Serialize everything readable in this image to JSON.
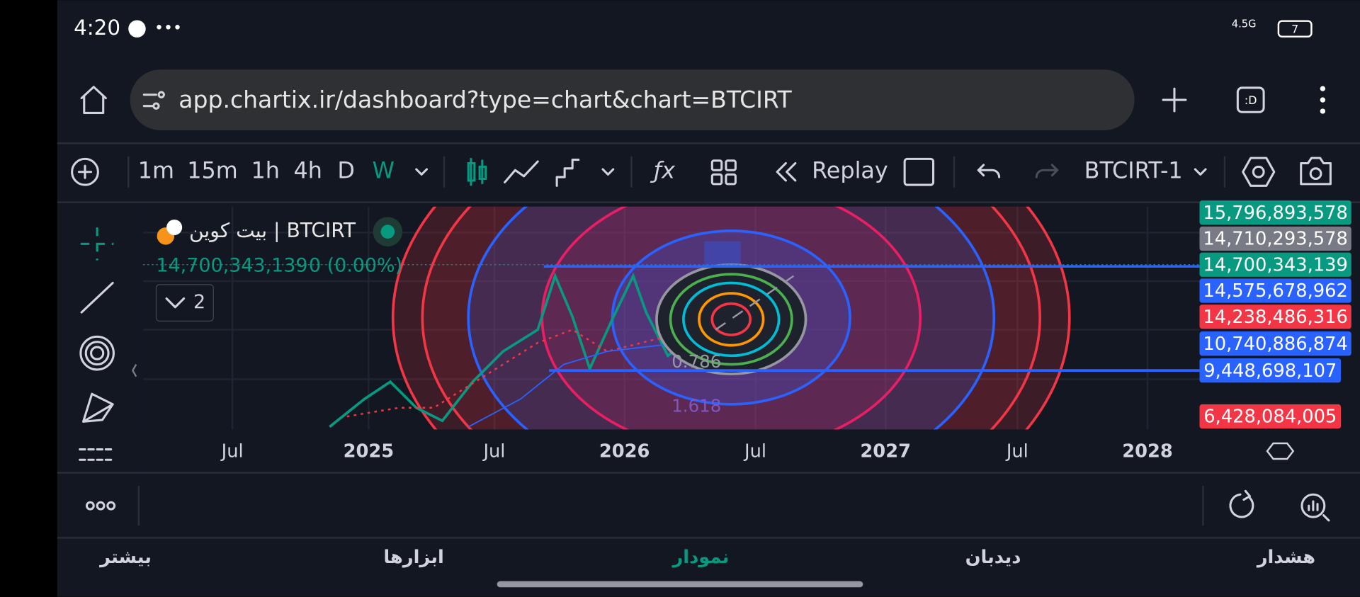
{
  "status_bar": {
    "time": "4:20",
    "network": "4.5G",
    "battery": "7"
  },
  "browser": {
    "url": "app.chartix.ir/dashboard?type=chart&chart=BTCIRT"
  },
  "toolbar": {
    "intervals": [
      "1m",
      "15m",
      "1h",
      "4h",
      "D",
      "W"
    ],
    "active_interval": "W",
    "replay": "Replay",
    "symbol": "BTCIRT-1"
  },
  "chart": {
    "legend_title": "بيت كوين | BTCIRT",
    "last_price": "14,700,343,139",
    "change": "0 (0.00%)",
    "indicator_count": "2",
    "price_labels": [
      {
        "text": "15,796,893,578",
        "color": "#089981"
      },
      {
        "text": "14,710,293,578",
        "color": "#787b86"
      },
      {
        "text": "14,700,343,139",
        "color": "#089981"
      },
      {
        "text": "14,575,678,962",
        "color": "#2962ff"
      },
      {
        "text": "14,238,486,316",
        "color": "#f23645"
      },
      {
        "text": "10,740,886,874",
        "color": "#2962ff"
      },
      {
        "text": "9,448,698,107",
        "color": "#2962ff"
      },
      {
        "text": "6,428,084,005",
        "color": "#f23645"
      }
    ],
    "time_labels": [
      "Jul",
      "2025",
      "Jul",
      "2026",
      "Jul",
      "2027",
      "Jul",
      "2028"
    ],
    "fib_labels": [
      "0.786",
      "1.618"
    ]
  },
  "bottom_nav": {
    "items": [
      "بیشتر",
      "ابزارها",
      "نمودار",
      "دیدبان",
      "هشدار"
    ],
    "active": "نمودار"
  }
}
